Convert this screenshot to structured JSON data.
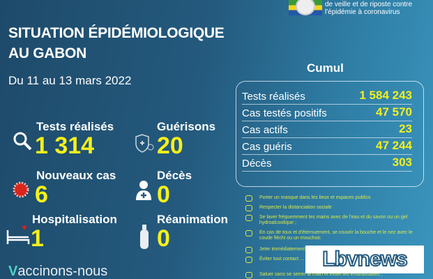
{
  "header": {
    "logo_text_line1": "de veille et de riposte contre",
    "logo_text_line2": "l'épidémie à coronavirus",
    "title_line1": "SITUATION ÉPIDÉMIOLOGIQUE",
    "title_line2": "AU GABON",
    "date": "Du 11 au 13 mars 2022"
  },
  "stats": [
    {
      "label": "Tests réalisés",
      "value": "1 314",
      "icon": "magnifier-icon"
    },
    {
      "label": "Guérisons",
      "value": "20",
      "icon": "shield-virus-icon"
    },
    {
      "label": "Nouveaux cas",
      "value": "6",
      "icon": "virus-icon"
    },
    {
      "label": "Décès",
      "value": "0",
      "icon": "person-cross-icon"
    },
    {
      "label": "Hospitalisation",
      "value": "1",
      "icon": "hospital-bed-icon"
    },
    {
      "label": "Réanimation",
      "value": "0",
      "icon": "oxygen-tank-icon"
    }
  ],
  "cumul": {
    "title": "Cumul",
    "rows": [
      {
        "label": "Tests réalisés",
        "value": "1 584 243"
      },
      {
        "label": "Cas testés positifs",
        "value": "47 570"
      },
      {
        "label": "Cas actifs",
        "value": "23"
      },
      {
        "label": "Cas guéris",
        "value": "47 244"
      },
      {
        "label": "Décès",
        "value": "303"
      }
    ]
  },
  "advice": [
    "Porter un masque dans les lieux et espaces publics",
    "Respecter la distanciation sociale",
    "Se laver fréquemment les mains avec de l'eau et du savon ou un gel hydroalcoolique ;",
    "En cas de toux et d'éternuement, se couvrir la bouche et le nez avec le coude fléchi ou un mouchoir.",
    "Jeter immédiatement ... laver les mains ;",
    "Éviter tout contact ... et de la toux ;",
    "Saluer sans se serrer la main et éviter les embrassades ;"
  ],
  "footer": {
    "vaccinate": "accinons-nous",
    "watermark": "Lbvnews.com"
  },
  "colors": {
    "accent": "#f5f01a",
    "advice": "#d9e84a"
  }
}
